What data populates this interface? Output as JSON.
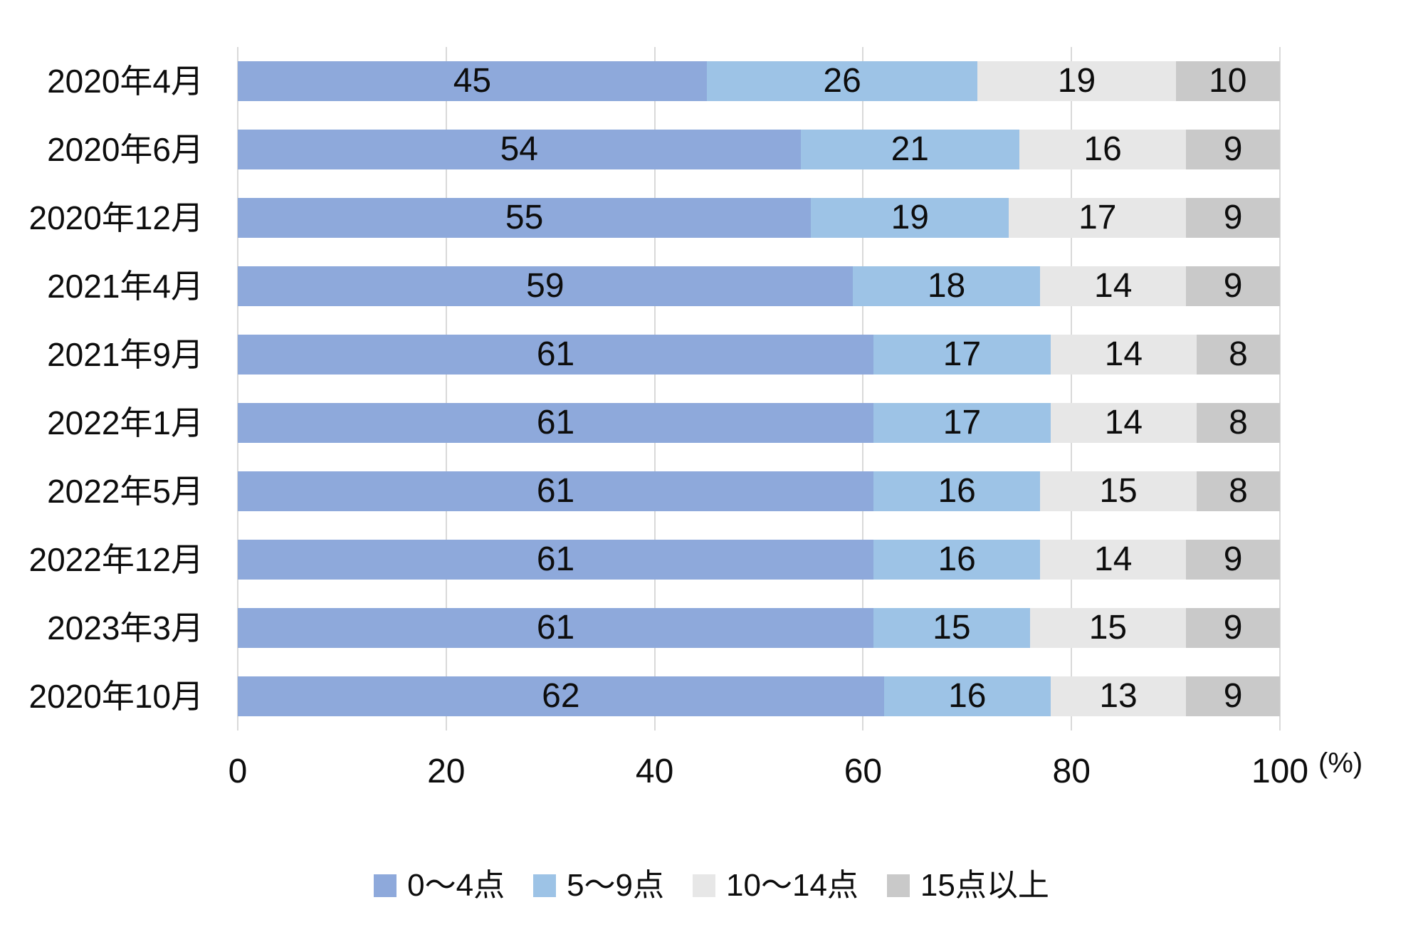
{
  "chart_data": {
    "type": "bar",
    "variant": "horizontal-stacked",
    "title": "",
    "categories": [
      "2020年4月",
      "2020年6月",
      "2020年12月",
      "2021年4月",
      "2021年9月",
      "2022年1月",
      "2022年5月",
      "2022年12月",
      "2023年3月",
      "2020年10月"
    ],
    "series": [
      {
        "name": "0〜4点",
        "color": "#8EA9DB",
        "values": [
          45,
          54,
          55,
          59,
          61,
          61,
          61,
          61,
          61,
          62
        ]
      },
      {
        "name": "5〜9点",
        "color": "#9DC3E6",
        "values": [
          26,
          21,
          19,
          18,
          17,
          17,
          16,
          16,
          15,
          16
        ]
      },
      {
        "name": "10〜14点",
        "color": "#E7E7E7",
        "values": [
          19,
          16,
          17,
          14,
          14,
          14,
          15,
          14,
          15,
          13
        ]
      },
      {
        "name": "15点以上",
        "color": "#C9C9C9",
        "values": [
          10,
          9,
          9,
          9,
          8,
          8,
          8,
          9,
          9,
          9
        ]
      }
    ],
    "xlim": [
      0,
      100
    ],
    "x_ticks": [
      0,
      20,
      40,
      60,
      80,
      100
    ],
    "unit_label": "(%)",
    "grid": "vertical",
    "gridline_color": "#d9d9d9",
    "value_labels": "inside-center",
    "legend_position": "bottom-center"
  }
}
